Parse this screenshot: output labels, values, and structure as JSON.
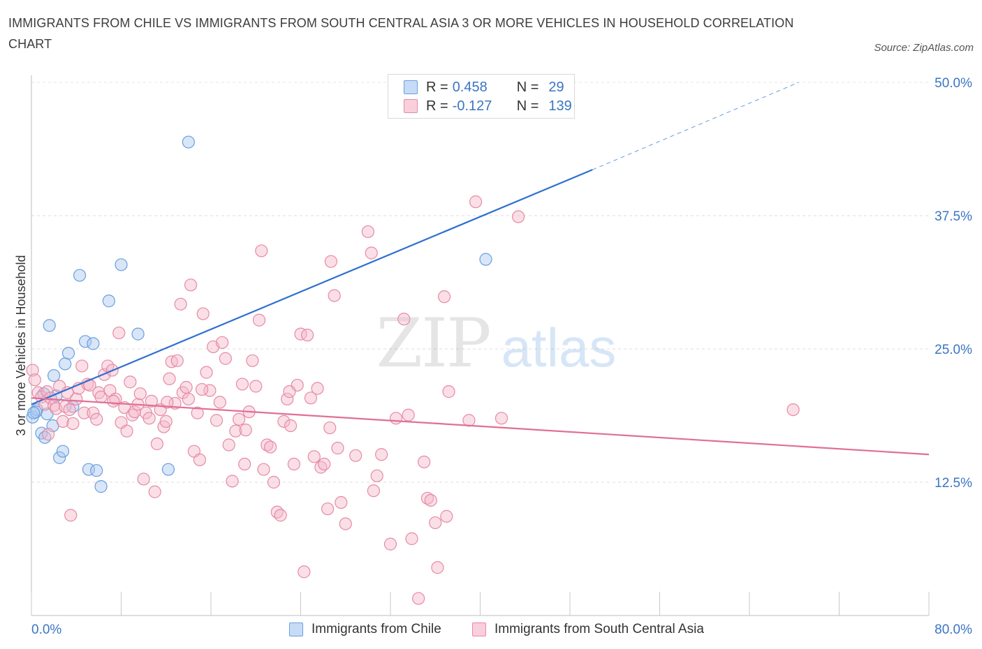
{
  "title": "IMMIGRANTS FROM CHILE VS IMMIGRANTS FROM SOUTH CENTRAL ASIA 3 OR MORE VEHICLES IN HOUSEHOLD CORRELATION CHART",
  "source": "Source: ZipAtlas.com",
  "watermark": {
    "zip": "ZIP",
    "atlas": "atlas"
  },
  "stats_legend": {
    "rows": [
      {
        "r_label": "R =",
        "r_value": "0.458",
        "n_label": "N =",
        "n_value": "29",
        "color": "#a8c8f0"
      },
      {
        "r_label": "R =",
        "r_value": "-0.127",
        "n_label": "N =",
        "n_value": "139",
        "color": "#f5b8ca"
      }
    ]
  },
  "bottom_legend": [
    {
      "label": "Immigrants from Chile",
      "color": "#a8c8f0"
    },
    {
      "label": "Immigrants from South Central Asia",
      "color": "#f5b8ca"
    }
  ],
  "chart_data": {
    "type": "scatter",
    "title": "IMMIGRANTS FROM CHILE VS IMMIGRANTS FROM SOUTH CENTRAL ASIA 3 OR MORE VEHICLES IN HOUSEHOLD CORRELATION CHART",
    "xlabel": "",
    "ylabel": "3 or more Vehicles in Household",
    "xlim": [
      0,
      80
    ],
    "ylim": [
      0,
      50
    ],
    "x_tick_labels": [
      "0.0%",
      "80.0%"
    ],
    "y_ticks": [
      12.5,
      25.0,
      37.5,
      50.0
    ],
    "y_tick_labels": [
      "12.5%",
      "25.0%",
      "37.5%",
      "50.0%"
    ],
    "grid": "horizontal dashed",
    "legend_position": "top-center",
    "series": [
      {
        "name": "Immigrants from Chile",
        "color": "#a8c8f0",
        "stroke": "#6a9ede",
        "trend_color": "#2f6fcf",
        "trend": {
          "x0": 0,
          "y0": 19.8,
          "x1": 50,
          "y1": 41.8,
          "dash_to_x": 68.4,
          "dash_to_y": 50
        },
        "points": [
          [
            0.1,
            18.6
          ],
          [
            0.5,
            19.3
          ],
          [
            0.4,
            19.1
          ],
          [
            0.9,
            17.1
          ],
          [
            1.1,
            20.8
          ],
          [
            1.2,
            16.7
          ],
          [
            1.4,
            18.9
          ],
          [
            1.6,
            27.2
          ],
          [
            2.0,
            22.5
          ],
          [
            1.9,
            17.8
          ],
          [
            2.2,
            20.6
          ],
          [
            2.5,
            14.8
          ],
          [
            2.8,
            15.4
          ],
          [
            3.0,
            23.6
          ],
          [
            3.3,
            24.6
          ],
          [
            3.7,
            19.6
          ],
          [
            4.3,
            31.9
          ],
          [
            4.8,
            25.7
          ],
          [
            5.1,
            13.7
          ],
          [
            5.5,
            25.5
          ],
          [
            5.8,
            13.6
          ],
          [
            6.2,
            12.1
          ],
          [
            6.9,
            29.5
          ],
          [
            8.0,
            32.9
          ],
          [
            9.5,
            26.4
          ],
          [
            12.2,
            13.7
          ],
          [
            14.0,
            44.4
          ],
          [
            40.5,
            33.4
          ],
          [
            0.2,
            19.0
          ]
        ]
      },
      {
        "name": "Immigrants from South Central Asia",
        "color": "#f5b8ca",
        "stroke": "#e68aa6",
        "trend_color": "#e06f96",
        "trend": {
          "x0": 0,
          "y0": 20.4,
          "x1": 80,
          "y1": 15.1
        },
        "points": [
          [
            0.1,
            23.0
          ],
          [
            0.3,
            22.1
          ],
          [
            0.6,
            20.9
          ],
          [
            0.9,
            20.5
          ],
          [
            1.2,
            19.8
          ],
          [
            1.4,
            21.0
          ],
          [
            1.5,
            17.0
          ],
          [
            1.7,
            20.4
          ],
          [
            2.0,
            19.7
          ],
          [
            2.2,
            19.4
          ],
          [
            2.5,
            21.5
          ],
          [
            2.8,
            18.2
          ],
          [
            3.0,
            19.6
          ],
          [
            3.2,
            20.9
          ],
          [
            3.4,
            19.3
          ],
          [
            3.5,
            9.4
          ],
          [
            3.7,
            18.0
          ],
          [
            4.0,
            20.3
          ],
          [
            4.2,
            21.3
          ],
          [
            4.5,
            23.4
          ],
          [
            4.7,
            19.0
          ],
          [
            5.0,
            21.7
          ],
          [
            5.2,
            21.6
          ],
          [
            5.5,
            19.0
          ],
          [
            5.8,
            18.4
          ],
          [
            6.0,
            20.9
          ],
          [
            6.2,
            20.5
          ],
          [
            6.5,
            22.6
          ],
          [
            6.8,
            23.4
          ],
          [
            7.0,
            21.1
          ],
          [
            7.2,
            23.0
          ],
          [
            7.5,
            20.3
          ],
          [
            7.8,
            26.5
          ],
          [
            8.0,
            18.1
          ],
          [
            8.3,
            19.5
          ],
          [
            8.5,
            17.3
          ],
          [
            8.8,
            21.9
          ],
          [
            9.0,
            18.8
          ],
          [
            9.2,
            19.1
          ],
          [
            9.5,
            19.8
          ],
          [
            9.7,
            20.8
          ],
          [
            10.0,
            12.8
          ],
          [
            10.2,
            19.0
          ],
          [
            10.5,
            18.5
          ],
          [
            10.7,
            20.1
          ],
          [
            11.0,
            11.6
          ],
          [
            11.2,
            16.1
          ],
          [
            11.5,
            19.3
          ],
          [
            11.8,
            17.7
          ],
          [
            12.0,
            18.2
          ],
          [
            12.3,
            22.2
          ],
          [
            12.5,
            23.8
          ],
          [
            12.8,
            19.9
          ],
          [
            13.0,
            23.9
          ],
          [
            13.3,
            29.2
          ],
          [
            13.5,
            20.9
          ],
          [
            13.8,
            21.4
          ],
          [
            14.0,
            20.3
          ],
          [
            14.2,
            31.0
          ],
          [
            14.5,
            15.4
          ],
          [
            14.8,
            19.0
          ],
          [
            15.0,
            14.6
          ],
          [
            15.3,
            28.3
          ],
          [
            15.6,
            22.8
          ],
          [
            15.9,
            21.1
          ],
          [
            16.2,
            25.2
          ],
          [
            16.5,
            18.3
          ],
          [
            16.8,
            20.0
          ],
          [
            17.0,
            25.6
          ],
          [
            17.3,
            24.1
          ],
          [
            17.6,
            16.0
          ],
          [
            17.9,
            12.6
          ],
          [
            18.2,
            17.3
          ],
          [
            18.5,
            18.4
          ],
          [
            18.8,
            21.7
          ],
          [
            19.1,
            17.4
          ],
          [
            19.4,
            19.1
          ],
          [
            19.7,
            23.9
          ],
          [
            20.0,
            21.5
          ],
          [
            20.3,
            27.7
          ],
          [
            20.5,
            34.2
          ],
          [
            20.7,
            13.7
          ],
          [
            21.0,
            16.0
          ],
          [
            21.3,
            15.8
          ],
          [
            21.6,
            12.5
          ],
          [
            21.9,
            9.7
          ],
          [
            22.2,
            9.4
          ],
          [
            22.5,
            18.2
          ],
          [
            22.8,
            20.3
          ],
          [
            23.1,
            17.8
          ],
          [
            23.4,
            14.2
          ],
          [
            23.7,
            21.6
          ],
          [
            24.0,
            26.4
          ],
          [
            24.3,
            4.1
          ],
          [
            24.6,
            26.3
          ],
          [
            24.9,
            20.4
          ],
          [
            25.2,
            14.9
          ],
          [
            25.5,
            21.3
          ],
          [
            25.8,
            13.9
          ],
          [
            26.1,
            14.2
          ],
          [
            26.4,
            10.0
          ],
          [
            26.7,
            33.2
          ],
          [
            27.0,
            30.0
          ],
          [
            27.3,
            15.7
          ],
          [
            27.6,
            10.6
          ],
          [
            28.9,
            15.0
          ],
          [
            28.0,
            8.6
          ],
          [
            30.0,
            36.0
          ],
          [
            30.3,
            34.0
          ],
          [
            30.5,
            11.7
          ],
          [
            30.8,
            13.1
          ],
          [
            31.2,
            15.1
          ],
          [
            32.0,
            6.7
          ],
          [
            32.5,
            18.5
          ],
          [
            33.2,
            27.8
          ],
          [
            33.6,
            18.8
          ],
          [
            33.9,
            7.2
          ],
          [
            34.5,
            1.6
          ],
          [
            35.0,
            14.4
          ],
          [
            35.3,
            11.0
          ],
          [
            35.6,
            10.8
          ],
          [
            36.0,
            8.7
          ],
          [
            36.2,
            4.5
          ],
          [
            37.0,
            9.3
          ],
          [
            36.8,
            29.9
          ],
          [
            37.2,
            21.0
          ],
          [
            39.0,
            18.3
          ],
          [
            39.6,
            38.8
          ],
          [
            41.9,
            18.5
          ],
          [
            43.4,
            37.4
          ],
          [
            67.9,
            19.3
          ],
          [
            23.0,
            21.0
          ],
          [
            26.6,
            17.6
          ],
          [
            7.3,
            20.1
          ],
          [
            19.0,
            14.2
          ],
          [
            12.1,
            20.0
          ],
          [
            15.2,
            21.2
          ]
        ]
      }
    ]
  }
}
